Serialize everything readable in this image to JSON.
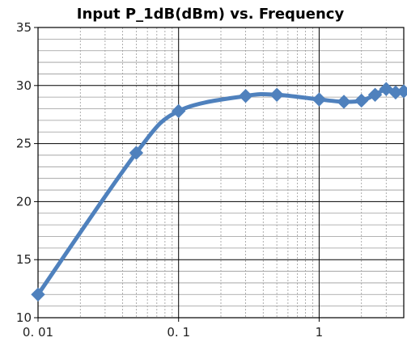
{
  "chart_data": {
    "type": "line",
    "title": "Input P_1dB(dBm)  vs. Frequency",
    "xlabel": "",
    "ylabel": "",
    "xscale": "log",
    "xlim": [
      0.01,
      4
    ],
    "ylim": [
      10,
      35
    ],
    "grid": true,
    "series": [
      {
        "x": [
          0.01,
          0.05,
          0.1,
          0.3,
          0.5,
          1.0,
          1.5,
          2.0,
          2.5,
          3.0,
          3.5,
          4.0
        ],
        "y": [
          12.0,
          24.2,
          27.8,
          29.1,
          29.2,
          28.8,
          28.6,
          28.7,
          29.2,
          29.7,
          29.4,
          29.5
        ],
        "color": "#4f81bd",
        "marker": "diamond"
      }
    ],
    "x_ticks": [
      {
        "value": 0.01,
        "label": "0. 01"
      },
      {
        "value": 0.1,
        "label": "0. 1"
      },
      {
        "value": 1,
        "label": "1"
      }
    ],
    "y_ticks": [
      {
        "value": 10,
        "label": "10"
      },
      {
        "value": 15,
        "label": "15"
      },
      {
        "value": 20,
        "label": "20"
      },
      {
        "value": 25,
        "label": "25"
      },
      {
        "value": 30,
        "label": "30"
      },
      {
        "value": 35,
        "label": "35"
      }
    ]
  }
}
